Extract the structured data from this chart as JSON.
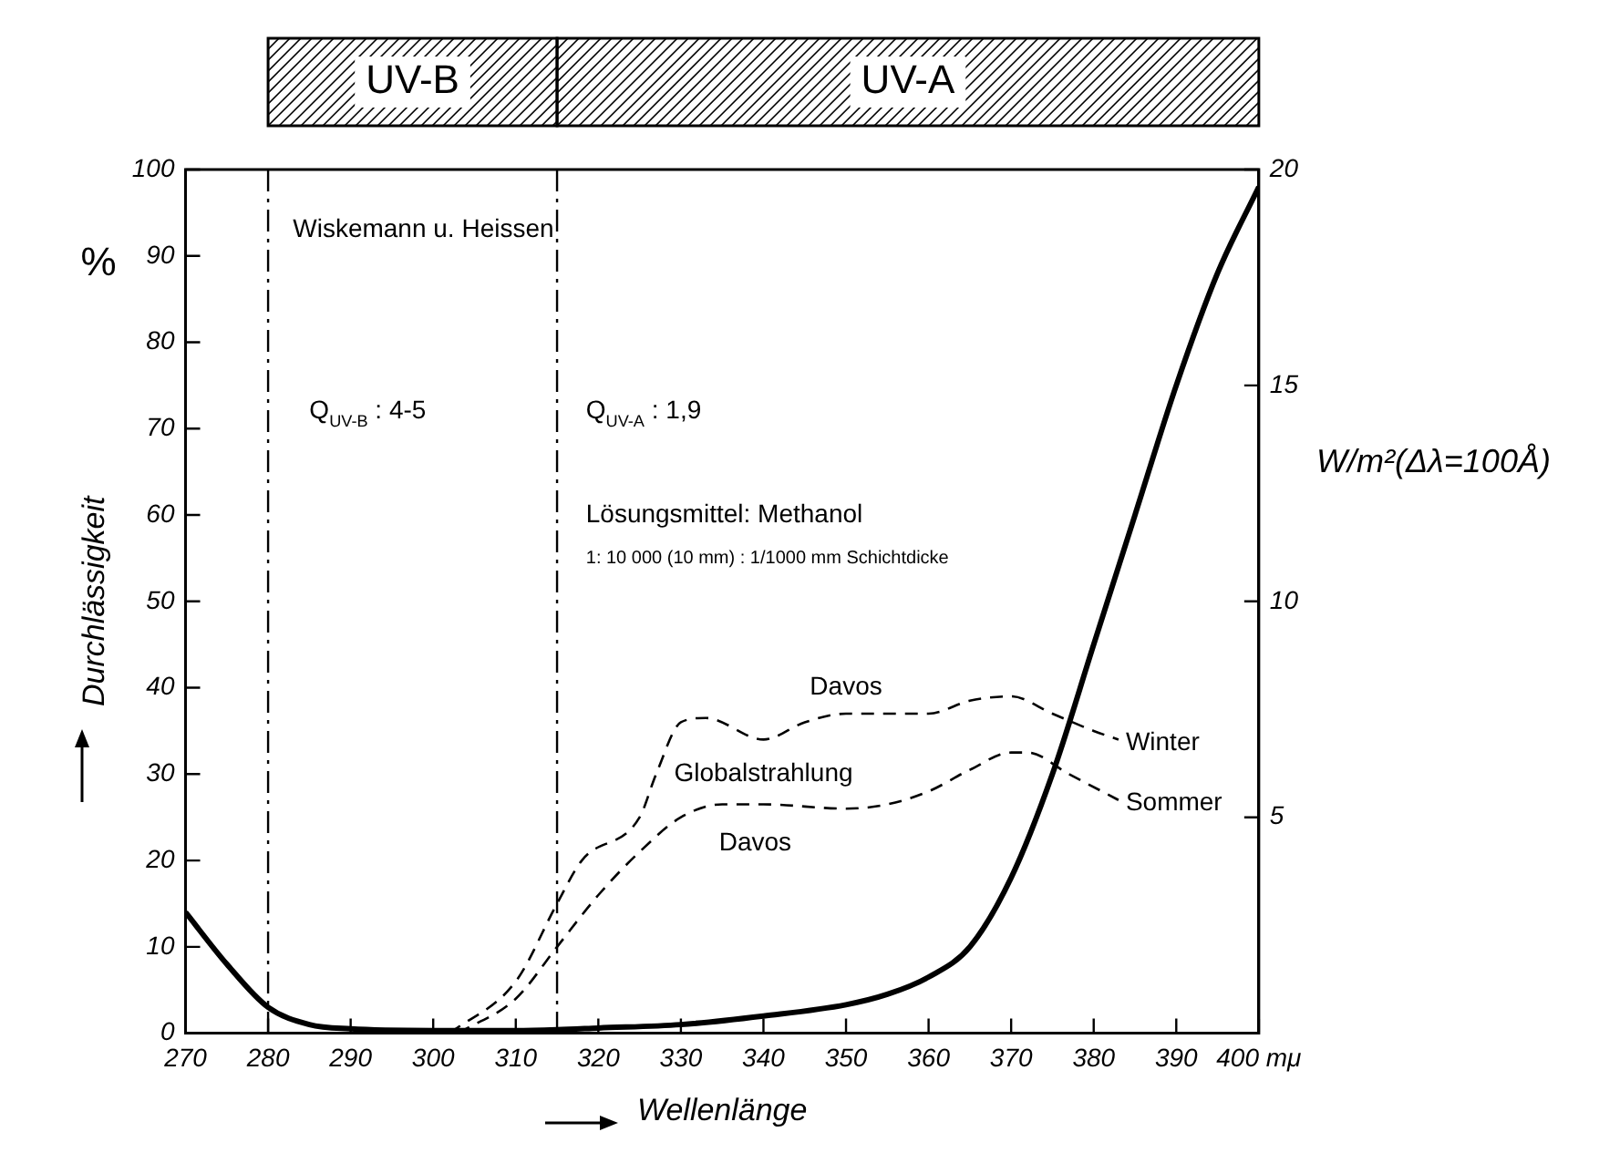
{
  "chart_data": {
    "type": "line",
    "xlabel": "Wellenlänge",
    "ylabel": "Durchlässigkeit",
    "y2label": "W/m²(Δλ=100Å)",
    "xlim": [
      270,
      400
    ],
    "xticks": [
      270,
      280,
      290,
      300,
      310,
      320,
      330,
      340,
      350,
      360,
      370,
      380,
      390,
      {
        "value": 400,
        "label": "400 mμ"
      }
    ],
    "ylim": [
      0,
      100
    ],
    "yticks": [
      0,
      10,
      20,
      30,
      40,
      50,
      60,
      70,
      80,
      90,
      100
    ],
    "y2lim": [
      0,
      20
    ],
    "y2ticks": [
      5,
      10,
      15,
      20
    ],
    "grid": false,
    "legend": false,
    "marker": "none",
    "series": [
      {
        "color": "#000000",
        "line_style": "solid",
        "x": [
          270,
          275,
          280,
          285,
          290,
          300,
          310,
          315,
          320,
          330,
          340,
          350,
          355,
          360,
          365,
          370,
          375,
          380,
          385,
          390,
          395,
          400
        ],
        "values": [
          14,
          8,
          3,
          1,
          0.5,
          0.3,
          0.3,
          0.4,
          0.6,
          1,
          2,
          3.3,
          4.5,
          6.5,
          10,
          18,
          30,
          45,
          60,
          75,
          88,
          98
        ]
      },
      {
        "name": "Winter",
        "axis": "y2",
        "color": "#000000",
        "line_style": "dashed",
        "x": [
          302,
          310,
          315,
          318,
          325,
          327,
          330,
          333,
          340,
          345,
          350,
          360,
          365,
          370,
          375,
          380,
          383
        ],
        "values": [
          0,
          1.2,
          3,
          4,
          5,
          6,
          7.2,
          7.3,
          6.8,
          7.2,
          7.4,
          7.4,
          7.7,
          7.8,
          7.4,
          7,
          6.8
        ]
      },
      {
        "name": "Sommer",
        "axis": "y2",
        "color": "#000000",
        "line_style": "dashed",
        "x": [
          303,
          310,
          315,
          320,
          325,
          330,
          335,
          340,
          350,
          355,
          360,
          365,
          370,
          372,
          377,
          383
        ],
        "values": [
          0,
          0.8,
          2,
          3.2,
          4.2,
          5,
          5.3,
          5.3,
          5.2,
          5.3,
          5.6,
          6.1,
          6.5,
          6.5,
          6,
          5.4
        ]
      }
    ],
    "ref_lines": [
      {
        "axis": "x",
        "value": 280
      },
      {
        "axis": "x",
        "value": 315
      }
    ],
    "annotations": [
      "Wiskemann u. Heissen",
      "Q$_{UV-B}$ : 4-5",
      "Q$_{UV-A}$ : 1,9",
      "Lösungsmittel: Methanol",
      "1: 10 000 (10 mm) : 1/1000 mm Schichtdicke",
      "%",
      "Davos",
      "Globalstrahlung",
      "Davos",
      "UV-B",
      "UV-A"
    ]
  }
}
